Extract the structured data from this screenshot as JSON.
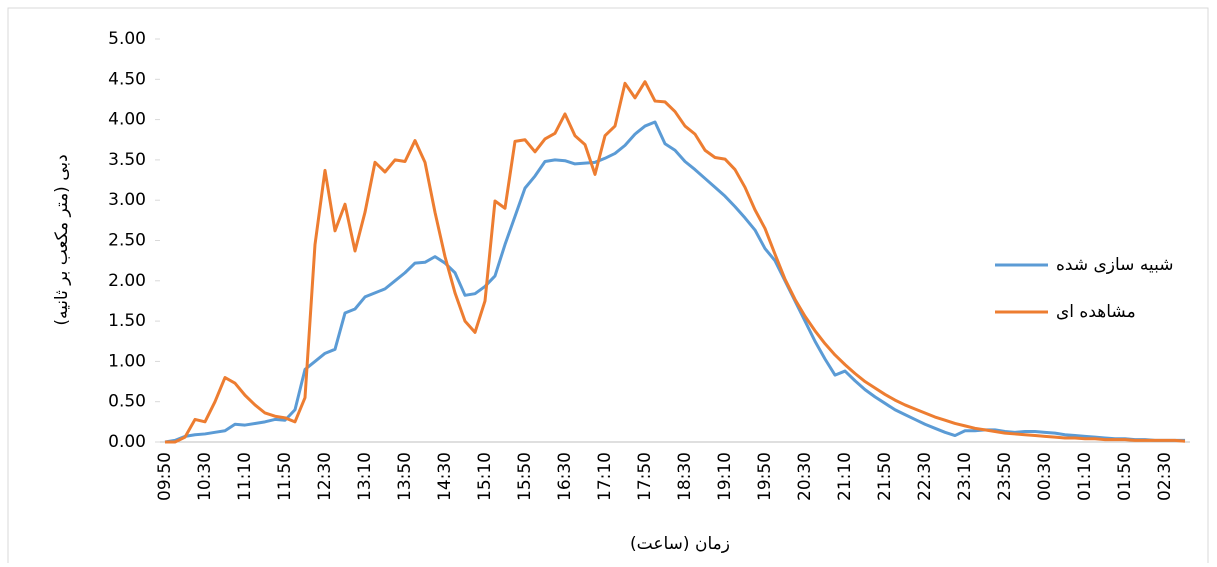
{
  "chart_data": {
    "type": "line",
    "x_label": "زمان (ساعت)",
    "y_label": "دبی (متر مکعب بر ثانیه)",
    "categories": [
      "09:50",
      null,
      null,
      null,
      "10:30",
      null,
      null,
      null,
      "11:10",
      null,
      null,
      null,
      "11:50",
      null,
      null,
      null,
      "12:30",
      null,
      null,
      null,
      "13:10",
      null,
      null,
      null,
      "13:50",
      null,
      null,
      null,
      "14:30",
      null,
      null,
      null,
      "15:10",
      null,
      null,
      null,
      "15:50",
      null,
      null,
      null,
      "16:30",
      null,
      null,
      null,
      "17:10",
      null,
      null,
      null,
      "17:50",
      null,
      null,
      null,
      "18:30",
      null,
      null,
      null,
      "19:10",
      null,
      null,
      null,
      "19:50",
      null,
      null,
      null,
      "20:30",
      null,
      null,
      null,
      "21:10",
      null,
      null,
      null,
      "21:50",
      null,
      null,
      null,
      "22:30",
      null,
      null,
      null,
      "23:10",
      null,
      null,
      null,
      "23:50",
      null,
      null,
      null,
      "00:30",
      null,
      null,
      null,
      "01:10",
      null,
      null,
      null,
      "01:50",
      null,
      null,
      null,
      "02:30",
      null,
      null
    ],
    "series": [
      {
        "name": "شبیه سازی شده",
        "color": "#5b9bd5",
        "values": [
          0.0,
          0.02,
          0.07,
          0.09,
          0.1,
          0.12,
          0.14,
          0.22,
          0.21,
          0.23,
          0.25,
          0.28,
          0.27,
          0.4,
          0.9,
          1.0,
          1.1,
          1.15,
          1.6,
          1.65,
          1.8,
          1.85,
          1.9,
          2.0,
          2.1,
          2.22,
          2.23,
          2.3,
          2.22,
          2.1,
          1.82,
          1.84,
          1.93,
          2.06,
          2.45,
          2.8,
          3.15,
          3.3,
          3.48,
          3.5,
          3.49,
          3.45,
          3.46,
          3.47,
          3.52,
          3.58,
          3.68,
          3.82,
          3.92,
          3.97,
          3.7,
          3.62,
          3.48,
          3.38,
          3.27,
          3.16,
          3.05,
          2.92,
          2.78,
          2.63,
          2.4,
          2.25,
          2.0,
          1.75,
          1.5,
          1.25,
          1.03,
          0.83,
          0.88,
          0.76,
          0.65,
          0.56,
          0.48,
          0.4,
          0.34,
          0.28,
          0.22,
          0.17,
          0.12,
          0.08,
          0.14,
          0.14,
          0.15,
          0.15,
          0.13,
          0.12,
          0.13,
          0.13,
          0.12,
          0.11,
          0.09,
          0.08,
          0.07,
          0.06,
          0.05,
          0.04,
          0.04,
          0.03,
          0.03,
          0.02,
          0.02,
          0.02,
          0.02
        ]
      },
      {
        "name": "مشاهده ای",
        "color": "#ed7d31",
        "values": [
          0.0,
          0.0,
          0.06,
          0.28,
          0.25,
          0.5,
          0.8,
          0.73,
          0.58,
          0.46,
          0.36,
          0.32,
          0.3,
          0.25,
          0.55,
          2.45,
          3.37,
          2.62,
          2.95,
          2.37,
          2.85,
          3.47,
          3.35,
          3.5,
          3.48,
          3.74,
          3.47,
          2.85,
          2.3,
          1.85,
          1.5,
          1.36,
          1.75,
          2.99,
          2.9,
          3.73,
          3.75,
          3.6,
          3.76,
          3.83,
          4.07,
          3.8,
          3.69,
          3.32,
          3.8,
          3.92,
          4.45,
          4.27,
          4.47,
          4.23,
          4.22,
          4.1,
          3.92,
          3.82,
          3.62,
          3.53,
          3.51,
          3.38,
          3.16,
          2.88,
          2.65,
          2.33,
          2.02,
          1.77,
          1.56,
          1.38,
          1.22,
          1.08,
          0.96,
          0.85,
          0.75,
          0.67,
          0.59,
          0.52,
          0.46,
          0.41,
          0.36,
          0.31,
          0.27,
          0.23,
          0.2,
          0.17,
          0.15,
          0.13,
          0.11,
          0.1,
          0.09,
          0.08,
          0.07,
          0.06,
          0.05,
          0.05,
          0.04,
          0.04,
          0.03,
          0.03,
          0.03,
          0.02,
          0.02,
          0.02,
          0.02,
          0.02,
          0.01
        ]
      }
    ],
    "ylim": [
      0,
      5
    ],
    "yticks": [
      {
        "value": 0,
        "label": "0.00"
      },
      {
        "value": 0.5,
        "label": "0.50"
      },
      {
        "value": 1,
        "label": "1.00"
      },
      {
        "value": 1.5,
        "label": "1.50"
      },
      {
        "value": 2,
        "label": "2.00"
      },
      {
        "value": 2.5,
        "label": "2.50"
      },
      {
        "value": 3,
        "label": "3.00"
      },
      {
        "value": 3.5,
        "label": "3.50"
      },
      {
        "value": 4,
        "label": "4.00"
      },
      {
        "value": 4.5,
        "label": "4.50"
      },
      {
        "value": 5,
        "label": "5.00"
      }
    ],
    "grid": false,
    "legend": "right"
  }
}
